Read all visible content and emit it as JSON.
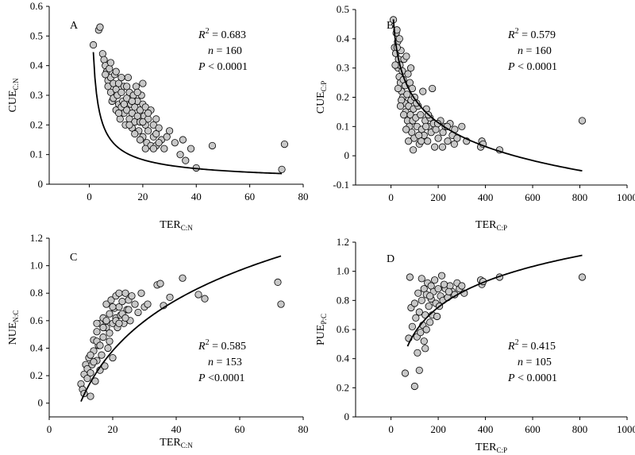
{
  "chart_data": [
    {
      "type": "scatter",
      "panel_letter": "A",
      "xlabel_main": "TER",
      "xlabel_sub": "C:N",
      "ylabel_main": "CUE",
      "ylabel_sub": "C:N",
      "xlim": [
        -15,
        80
      ],
      "ylim": [
        0,
        0.6
      ],
      "xticks": [
        0,
        20,
        40,
        60,
        80
      ],
      "yticks": [
        0,
        0.1,
        0.2,
        0.3,
        0.4,
        0.5,
        0.6
      ],
      "ytick_decimals": 1,
      "stats": {
        "r2_label": "R",
        "r2_sup": "2",
        "r2_value": " = 0.683",
        "n_label": "n",
        "n_value": " = 160",
        "p_label": "P",
        "p_value": " < 0.0001"
      },
      "fit": {
        "form": "a*x^b",
        "a": 0.58,
        "b": -0.65,
        "x_range": [
          1.5,
          72
        ]
      },
      "points": [
        [
          1.5,
          0.47
        ],
        [
          3.5,
          0.52
        ],
        [
          4,
          0.53
        ],
        [
          5,
          0.44
        ],
        [
          5.5,
          0.42
        ],
        [
          6,
          0.4
        ],
        [
          6.5,
          0.38
        ],
        [
          7,
          0.35
        ],
        [
          7,
          0.33
        ],
        [
          7.5,
          0.39
        ],
        [
          8,
          0.36
        ],
        [
          8,
          0.31
        ],
        [
          8.5,
          0.28
        ],
        [
          9,
          0.34
        ],
        [
          9,
          0.29
        ],
        [
          9.5,
          0.37
        ],
        [
          10,
          0.32
        ],
        [
          10,
          0.25
        ],
        [
          10.5,
          0.3
        ],
        [
          11,
          0.34
        ],
        [
          11,
          0.27
        ],
        [
          11.5,
          0.22
        ],
        [
          12,
          0.31
        ],
        [
          12,
          0.26
        ],
        [
          12.5,
          0.28
        ],
        [
          13,
          0.24
        ],
        [
          13,
          0.33
        ],
        [
          13.5,
          0.2
        ],
        [
          14,
          0.29
        ],
        [
          14,
          0.25
        ],
        [
          14.5,
          0.36
        ],
        [
          15,
          0.22
        ],
        [
          15,
          0.31
        ],
        [
          15.5,
          0.27
        ],
        [
          16,
          0.24
        ],
        [
          16,
          0.19
        ],
        [
          16.5,
          0.3
        ],
        [
          17,
          0.21
        ],
        [
          17,
          0.26
        ],
        [
          17.5,
          0.33
        ],
        [
          18,
          0.23
        ],
        [
          18,
          0.28
        ],
        [
          18.5,
          0.18
        ],
        [
          19,
          0.25
        ],
        [
          19,
          0.21
        ],
        [
          19.5,
          0.3
        ],
        [
          20,
          0.16
        ],
        [
          20,
          0.27
        ],
        [
          20.5,
          0.23
        ],
        [
          21,
          0.2
        ],
        [
          21,
          0.26
        ],
        [
          21.5,
          0.14
        ],
        [
          22,
          0.22
        ],
        [
          22,
          0.18
        ],
        [
          23,
          0.25
        ],
        [
          23,
          0.13
        ],
        [
          24,
          0.2
        ],
        [
          24,
          0.16
        ],
        [
          25,
          0.17
        ],
        [
          25,
          0.13
        ],
        [
          26,
          0.19
        ],
        [
          27,
          0.15
        ],
        [
          28,
          0.12
        ],
        [
          29,
          0.16
        ],
        [
          30,
          0.18
        ],
        [
          32,
          0.14
        ],
        [
          34,
          0.1
        ],
        [
          35,
          0.15
        ],
        [
          36,
          0.08
        ],
        [
          38,
          0.12
        ],
        [
          40,
          0.055
        ],
        [
          46,
          0.13
        ],
        [
          72,
          0.05
        ],
        [
          73,
          0.135
        ],
        [
          12,
          0.36
        ],
        [
          6,
          0.37
        ],
        [
          8,
          0.41
        ],
        [
          13,
          0.27
        ],
        [
          15,
          0.2
        ],
        [
          17,
          0.17
        ],
        [
          19,
          0.15
        ],
        [
          21,
          0.12
        ],
        [
          24,
          0.12
        ],
        [
          11,
          0.24
        ],
        [
          16,
          0.28
        ],
        [
          22,
          0.24
        ],
        [
          18,
          0.31
        ],
        [
          14,
          0.33
        ],
        [
          20,
          0.21
        ],
        [
          10,
          0.38
        ],
        [
          20,
          0.34
        ],
        [
          25,
          0.22
        ],
        [
          26,
          0.14
        ]
      ]
    },
    {
      "type": "scatter",
      "panel_letter": "B",
      "xlabel_main": "TER",
      "xlabel_sub": "C:P",
      "ylabel_main": "CUE",
      "ylabel_sub": "C:P",
      "xlim": [
        -150,
        1000
      ],
      "ylim": [
        -0.1,
        0.5
      ],
      "xticks": [
        0,
        200,
        400,
        600,
        800,
        1000
      ],
      "yticks": [
        -0.1,
        0,
        0.1,
        0.2,
        0.3,
        0.4,
        0.5
      ],
      "ytick_decimals": 1,
      "stats": {
        "r2_label": "R",
        "r2_sup": "2",
        "r2_value": " = 0.579",
        "n_label": "n",
        "n_value": " = 160",
        "p_label": "P",
        "p_value": " < 0.0001"
      },
      "fit": {
        "form": "a + b*ln(x)",
        "a": 0.738,
        "b": -0.1179,
        "x_range": [
          10,
          810
        ]
      },
      "points": [
        [
          10,
          0.465
        ],
        [
          15,
          0.37
        ],
        [
          20,
          0.35
        ],
        [
          22,
          0.42
        ],
        [
          25,
          0.43
        ],
        [
          28,
          0.39
        ],
        [
          30,
          0.3
        ],
        [
          32,
          0.33
        ],
        [
          35,
          0.27
        ],
        [
          38,
          0.31
        ],
        [
          40,
          0.25
        ],
        [
          42,
          0.36
        ],
        [
          45,
          0.22
        ],
        [
          48,
          0.29
        ],
        [
          50,
          0.2
        ],
        [
          52,
          0.26
        ],
        [
          55,
          0.33
        ],
        [
          58,
          0.18
        ],
        [
          60,
          0.24
        ],
        [
          62,
          0.15
        ],
        [
          65,
          0.34
        ],
        [
          68,
          0.21
        ],
        [
          70,
          0.12
        ],
        [
          72,
          0.28
        ],
        [
          75,
          0.17
        ],
        [
          78,
          0.1
        ],
        [
          80,
          0.25
        ],
        [
          82,
          0.14
        ],
        [
          85,
          0.19
        ],
        [
          88,
          0.08
        ],
        [
          90,
          0.23
        ],
        [
          92,
          0.12
        ],
        [
          95,
          0.16
        ],
        [
          98,
          0.06
        ],
        [
          100,
          0.2
        ],
        [
          105,
          0.13
        ],
        [
          110,
          0.1
        ],
        [
          115,
          0.17
        ],
        [
          120,
          0.04
        ],
        [
          125,
          0.14
        ],
        [
          130,
          0.09
        ],
        [
          135,
          0.22
        ],
        [
          140,
          0.07
        ],
        [
          145,
          0.12
        ],
        [
          150,
          0.16
        ],
        [
          155,
          0.05
        ],
        [
          160,
          0.1
        ],
        [
          165,
          0.13
        ],
        [
          170,
          0.08
        ],
        [
          175,
          0.23
        ],
        [
          180,
          0.11
        ],
        [
          185,
          0.03
        ],
        [
          190,
          0.09
        ],
        [
          200,
          0.06
        ],
        [
          210,
          0.12
        ],
        [
          220,
          0.08
        ],
        [
          230,
          0.1
        ],
        [
          240,
          0.05
        ],
        [
          250,
          0.11
        ],
        [
          260,
          0.07
        ],
        [
          270,
          0.09
        ],
        [
          280,
          0.06
        ],
        [
          300,
          0.1
        ],
        [
          320,
          0.05
        ],
        [
          380,
          0.03
        ],
        [
          385,
          0.05
        ],
        [
          390,
          0.04
        ],
        [
          460,
          0.02
        ],
        [
          810,
          0.12
        ],
        [
          18,
          0.31
        ],
        [
          26,
          0.37
        ],
        [
          36,
          0.4
        ],
        [
          44,
          0.19
        ],
        [
          54,
          0.14
        ],
        [
          64,
          0.09
        ],
        [
          74,
          0.05
        ],
        [
          84,
          0.3
        ],
        [
          94,
          0.02
        ],
        [
          108,
          0.18
        ],
        [
          118,
          0.07
        ],
        [
          128,
          0.05
        ],
        [
          148,
          0.1
        ],
        [
          158,
          0.14
        ],
        [
          198,
          0.11
        ],
        [
          218,
          0.03
        ],
        [
          238,
          0.1
        ],
        [
          268,
          0.04
        ],
        [
          30,
          0.23
        ],
        [
          40,
          0.17
        ]
      ]
    },
    {
      "type": "scatter",
      "panel_letter": "C",
      "xlabel_main": "TER",
      "xlabel_sub": "C:N",
      "ylabel_main": "NUE",
      "ylabel_sub": "N:C",
      "xlim": [
        0,
        80
      ],
      "ylim": [
        -0.1,
        1.2
      ],
      "xticks": [
        0,
        20,
        40,
        60,
        80
      ],
      "yticks": [
        0,
        0.2,
        0.4,
        0.6,
        0.8,
        1.0,
        1.2
      ],
      "ytick_decimals": 1,
      "stats": {
        "r2_label": "R",
        "r2_sup": "2",
        "r2_value": " = 0.585",
        "n_label": "n",
        "n_value": " = 153",
        "p_label": "P",
        "p_value": " <0.0001"
      },
      "fit": {
        "form": "a + b*ln(x)",
        "a": -1.214,
        "b": 0.5325,
        "x_range": [
          10,
          73
        ]
      },
      "points": [
        [
          10,
          0.14
        ],
        [
          10.5,
          0.1
        ],
        [
          11,
          0.21
        ],
        [
          11,
          0.07
        ],
        [
          11.5,
          0.28
        ],
        [
          12,
          0.18
        ],
        [
          12,
          0.25
        ],
        [
          12.5,
          0.33
        ],
        [
          13,
          0.05
        ],
        [
          13,
          0.22
        ],
        [
          13.5,
          0.28
        ],
        [
          14,
          0.38
        ],
        [
          14,
          0.46
        ],
        [
          14.5,
          0.16
        ],
        [
          15,
          0.52
        ],
        [
          15,
          0.31
        ],
        [
          15.5,
          0.42
        ],
        [
          16,
          0.24
        ],
        [
          16,
          0.58
        ],
        [
          16.5,
          0.35
        ],
        [
          17,
          0.48
        ],
        [
          17,
          0.62
        ],
        [
          17.5,
          0.27
        ],
        [
          18,
          0.55
        ],
        [
          18,
          0.72
        ],
        [
          18.5,
          0.4
        ],
        [
          19,
          0.65
        ],
        [
          19,
          0.51
        ],
        [
          19.5,
          0.75
        ],
        [
          20,
          0.58
        ],
        [
          20,
          0.33
        ],
        [
          20.5,
          0.69
        ],
        [
          21,
          0.62
        ],
        [
          21,
          0.78
        ],
        [
          21.5,
          0.55
        ],
        [
          22,
          0.7
        ],
        [
          22,
          0.8
        ],
        [
          22.5,
          0.64
        ],
        [
          23,
          0.74
        ],
        [
          23.5,
          0.58
        ],
        [
          24,
          0.8
        ],
        [
          24.5,
          0.68
        ],
        [
          25,
          0.75
        ],
        [
          25.5,
          0.6
        ],
        [
          26,
          0.78
        ],
        [
          27,
          0.72
        ],
        [
          28,
          0.66
        ],
        [
          29,
          0.8
        ],
        [
          30,
          0.7
        ],
        [
          31,
          0.72
        ],
        [
          34,
          0.86
        ],
        [
          35,
          0.87
        ],
        [
          36,
          0.71
        ],
        [
          38,
          0.77
        ],
        [
          42,
          0.91
        ],
        [
          47,
          0.79
        ],
        [
          49,
          0.76
        ],
        [
          72,
          0.88
        ],
        [
          73,
          0.72
        ],
        [
          15,
          0.45
        ],
        [
          17,
          0.55
        ],
        [
          19,
          0.45
        ],
        [
          21,
          0.6
        ],
        [
          23,
          0.65
        ],
        [
          14,
          0.3
        ],
        [
          16,
          0.42
        ],
        [
          18,
          0.6
        ],
        [
          20,
          0.7
        ],
        [
          22,
          0.58
        ],
        [
          13,
          0.35
        ],
        [
          15,
          0.58
        ],
        [
          24,
          0.62
        ],
        [
          25,
          0.68
        ]
      ]
    },
    {
      "type": "scatter",
      "panel_letter": "D",
      "xlabel_main": "TER",
      "xlabel_sub": "C:P",
      "ylabel_main": "PUE",
      "ylabel_sub": "P:C",
      "xlim": [
        -150,
        1000
      ],
      "ylim": [
        0,
        1.2
      ],
      "xticks": [
        0,
        200,
        400,
        600,
        800,
        1000
      ],
      "yticks": [
        0,
        0.2,
        0.4,
        0.6,
        0.8,
        1.0,
        1.2
      ],
      "ytick_decimals": 1,
      "stats": {
        "r2_label": "R",
        "r2_sup": "2",
        "r2_value": " = 0.415",
        "n_label": "n",
        "n_value": " = 105",
        "p_label": "P",
        "p_value": " < 0.0001"
      },
      "fit": {
        "form": "a + b*ln(x)",
        "a": -0.6,
        "b": 0.2553,
        "x_range": [
          70,
          810
        ]
      },
      "points": [
        [
          60,
          0.3
        ],
        [
          75,
          0.54
        ],
        [
          80,
          0.96
        ],
        [
          85,
          0.75
        ],
        [
          90,
          0.62
        ],
        [
          100,
          0.21
        ],
        [
          100,
          0.78
        ],
        [
          105,
          0.68
        ],
        [
          110,
          0.55
        ],
        [
          115,
          0.85
        ],
        [
          120,
          0.32
        ],
        [
          120,
          0.72
        ],
        [
          125,
          0.58
        ],
        [
          130,
          0.95
        ],
        [
          130,
          0.8
        ],
        [
          135,
          0.63
        ],
        [
          140,
          0.88
        ],
        [
          140,
          0.52
        ],
        [
          145,
          0.7
        ],
        [
          150,
          0.84
        ],
        [
          150,
          0.6
        ],
        [
          155,
          0.92
        ],
        [
          160,
          0.76
        ],
        [
          165,
          0.65
        ],
        [
          170,
          0.9
        ],
        [
          170,
          0.81
        ],
        [
          175,
          0.7
        ],
        [
          180,
          0.86
        ],
        [
          185,
          0.94
        ],
        [
          190,
          0.78
        ],
        [
          195,
          0.69
        ],
        [
          200,
          0.88
        ],
        [
          210,
          0.83
        ],
        [
          215,
          0.97
        ],
        [
          220,
          0.8
        ],
        [
          230,
          0.88
        ],
        [
          240,
          0.82
        ],
        [
          250,
          0.9
        ],
        [
          260,
          0.86
        ],
        [
          270,
          0.84
        ],
        [
          280,
          0.92
        ],
        [
          290,
          0.88
        ],
        [
          300,
          0.9
        ],
        [
          310,
          0.85
        ],
        [
          380,
          0.94
        ],
        [
          385,
          0.91
        ],
        [
          390,
          0.93
        ],
        [
          460,
          0.96
        ],
        [
          810,
          0.96
        ],
        [
          165,
          0.83
        ],
        [
          205,
          0.76
        ],
        [
          225,
          0.91
        ],
        [
          245,
          0.86
        ],
        [
          145,
          0.47
        ],
        [
          112,
          0.44
        ]
      ]
    }
  ]
}
